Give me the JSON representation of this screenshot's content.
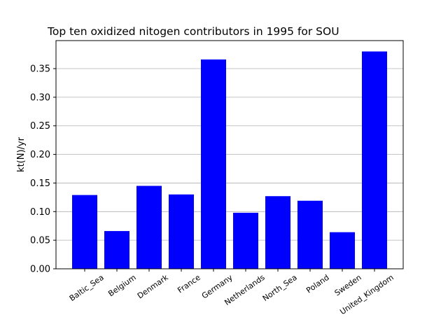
{
  "chart_data": {
    "type": "bar",
    "title": "Top ten oxidized nitogen contributors in 1995 for  SOU",
    "xlabel": "",
    "ylabel": "kt(N)/yr",
    "categories": [
      "Baltic_Sea",
      "Belgium",
      "Denmark",
      "France",
      "Germany",
      "Netherlands",
      "North_Sea",
      "Poland",
      "Sweden",
      "United_Kingdom"
    ],
    "values": [
      0.129,
      0.066,
      0.145,
      0.13,
      0.366,
      0.098,
      0.127,
      0.119,
      0.064,
      0.38
    ],
    "yticks": [
      "0.00",
      "0.05",
      "0.10",
      "0.15",
      "0.20",
      "0.25",
      "0.30",
      "0.35"
    ],
    "ylim": [
      0,
      0.399
    ],
    "grid": "y",
    "bar_color": "#0000ff"
  }
}
